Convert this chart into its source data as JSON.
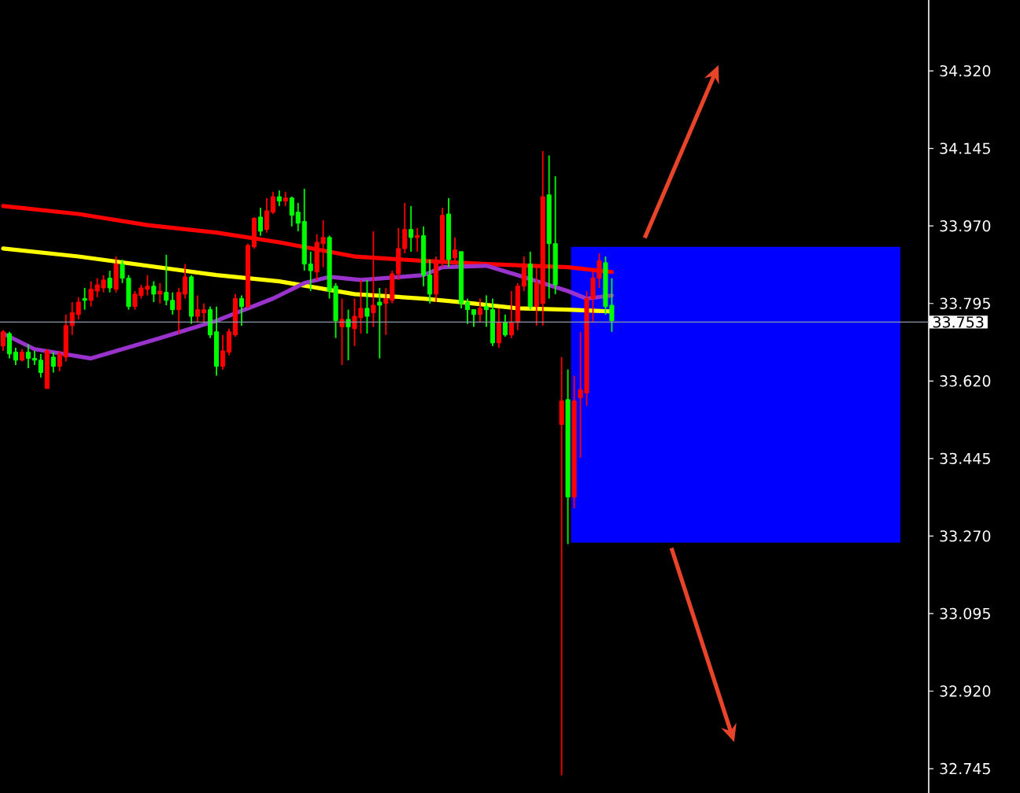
{
  "chart_data": {
    "type": "candlestick",
    "categories": [
      null,
      null,
      null,
      null,
      null,
      null,
      null,
      null,
      null,
      null,
      null,
      null,
      null,
      null,
      null,
      null,
      null,
      null,
      null,
      null,
      null,
      null,
      null,
      null,
      null,
      null,
      null,
      null,
      null,
      null,
      null,
      null,
      null,
      null,
      null,
      null,
      null,
      null,
      null,
      null,
      null,
      null,
      null,
      null,
      null,
      null,
      null,
      null,
      null,
      null,
      null,
      null,
      null,
      null,
      null,
      null,
      null,
      null,
      null,
      null,
      null,
      null,
      null,
      null,
      null,
      null,
      null,
      null,
      null,
      null,
      null,
      null,
      null,
      null,
      null,
      null,
      null,
      null,
      null,
      null,
      null,
      null,
      null,
      null,
      null,
      null,
      null,
      null,
      null,
      null,
      null,
      null,
      null,
      null,
      null,
      null,
      null,
      null,
      null,
      null,
      null,
      null,
      null,
      null,
      null,
      null,
      null,
      null,
      null,
      null,
      null,
      null,
      null,
      null,
      null,
      null,
      null,
      null,
      null,
      null,
      null,
      null,
      null,
      null,
      null,
      null,
      null,
      null,
      null,
      null,
      null,
      null,
      null,
      null,
      null,
      null,
      null,
      null,
      null,
      null,
      null,
      null,
      null,
      null,
      null,
      null,
      null,
      null
    ],
    "ohlc": [
      [
        33.731,
        33.735,
        33.688,
        33.699
      ],
      [
        33.681,
        33.731,
        33.671,
        33.727
      ],
      [
        33.667,
        33.695,
        33.656,
        33.685
      ],
      [
        33.685,
        33.692,
        33.664,
        33.667
      ],
      [
        33.671,
        33.703,
        33.649,
        33.685
      ],
      [
        33.667,
        33.688,
        33.656,
        33.671
      ],
      [
        33.639,
        33.681,
        33.628,
        33.667
      ],
      [
        33.688,
        33.692,
        33.603,
        33.603
      ],
      [
        33.653,
        33.685,
        33.639,
        33.674
      ],
      [
        33.681,
        33.688,
        33.642,
        33.653
      ],
      [
        33.745,
        33.77,
        33.664,
        33.674
      ],
      [
        33.774,
        33.798,
        33.724,
        33.745
      ],
      [
        33.798,
        33.809,
        33.759,
        33.77
      ],
      [
        33.802,
        33.83,
        33.781,
        33.806
      ],
      [
        33.827,
        33.845,
        33.788,
        33.802
      ],
      [
        33.837,
        33.852,
        33.809,
        33.823
      ],
      [
        33.848,
        33.859,
        33.82,
        33.83
      ],
      [
        33.83,
        33.869,
        33.82,
        33.852
      ],
      [
        33.884,
        33.901,
        33.82,
        33.827
      ],
      [
        33.852,
        33.894,
        33.841,
        33.884
      ],
      [
        33.788,
        33.859,
        33.781,
        33.852
      ],
      [
        33.816,
        33.823,
        33.781,
        33.788
      ],
      [
        33.83,
        33.837,
        33.806,
        33.813
      ],
      [
        33.834,
        33.859,
        33.813,
        33.827
      ],
      [
        33.816,
        33.845,
        33.798,
        33.834
      ],
      [
        33.823,
        33.841,
        33.795,
        33.816
      ],
      [
        33.802,
        33.905,
        33.791,
        33.82
      ],
      [
        33.781,
        33.82,
        33.77,
        33.802
      ],
      [
        33.82,
        33.83,
        33.727,
        33.781
      ],
      [
        33.855,
        33.884,
        33.806,
        33.816
      ],
      [
        33.766,
        33.859,
        33.749,
        33.855
      ],
      [
        33.781,
        33.813,
        33.752,
        33.766
      ],
      [
        33.781,
        33.795,
        33.752,
        33.774
      ],
      [
        33.724,
        33.788,
        33.717,
        33.781
      ],
      [
        33.653,
        33.788,
        33.632,
        33.731
      ],
      [
        33.688,
        33.724,
        33.646,
        33.653
      ],
      [
        33.731,
        33.738,
        33.678,
        33.685
      ],
      [
        33.806,
        33.816,
        33.72,
        33.724
      ],
      [
        33.788,
        33.813,
        33.745,
        33.806
      ],
      [
        33.926,
        33.93,
        33.784,
        33.788
      ],
      [
        33.987,
        33.99,
        33.919,
        33.923
      ],
      [
        33.958,
        34.011,
        33.948,
        33.99
      ],
      [
        34.004,
        34.033,
        33.955,
        33.962
      ],
      [
        34.036,
        34.047,
        33.997,
        34.001
      ],
      [
        34.026,
        34.05,
        34.015,
        34.036
      ],
      [
        34.033,
        34.047,
        34.015,
        34.026
      ],
      [
        33.994,
        34.036,
        33.969,
        34.033
      ],
      [
        33.976,
        34.022,
        33.958,
        34.001
      ],
      [
        33.884,
        34.054,
        33.869,
        33.98
      ],
      [
        33.869,
        33.912,
        33.823,
        33.884
      ],
      [
        33.933,
        33.951,
        33.848,
        33.866
      ],
      [
        33.944,
        33.983,
        33.877,
        33.93
      ],
      [
        33.823,
        33.948,
        33.806,
        33.944
      ],
      [
        33.756,
        33.841,
        33.717,
        33.834
      ],
      [
        33.759,
        33.806,
        33.656,
        33.742
      ],
      [
        33.742,
        33.781,
        33.667,
        33.759
      ],
      [
        33.766,
        33.806,
        33.699,
        33.738
      ],
      [
        33.784,
        33.848,
        33.727,
        33.763
      ],
      [
        33.766,
        33.848,
        33.727,
        33.784
      ],
      [
        33.791,
        33.958,
        33.742,
        33.774
      ],
      [
        33.791,
        33.83,
        33.671,
        33.798
      ],
      [
        33.806,
        33.83,
        33.724,
        33.795
      ],
      [
        33.862,
        33.869,
        33.795,
        33.802
      ],
      [
        33.919,
        33.965,
        33.848,
        33.862
      ],
      [
        33.962,
        34.022,
        33.908,
        33.919
      ],
      [
        33.944,
        34.015,
        33.912,
        33.962
      ],
      [
        33.948,
        33.965,
        33.912,
        33.944
      ],
      [
        33.859,
        33.969,
        33.834,
        33.948
      ],
      [
        33.816,
        33.894,
        33.795,
        33.859
      ],
      [
        33.887,
        33.901,
        33.798,
        33.816
      ],
      [
        33.994,
        34.011,
        33.877,
        33.891
      ],
      [
        33.894,
        34.033,
        33.877,
        33.997
      ],
      [
        33.916,
        33.944,
        33.884,
        33.898
      ],
      [
        33.795,
        33.912,
        33.784,
        33.912
      ],
      [
        33.781,
        33.806,
        33.749,
        33.798
      ],
      [
        33.77,
        33.781,
        33.742,
        33.781
      ],
      [
        33.784,
        33.806,
        33.752,
        33.77
      ],
      [
        33.781,
        33.813,
        33.742,
        33.788
      ],
      [
        33.706,
        33.806,
        33.699,
        33.781
      ],
      [
        33.752,
        33.784,
        33.695,
        33.706
      ],
      [
        33.724,
        33.77,
        33.72,
        33.752
      ],
      [
        33.752,
        33.823,
        33.717,
        33.724
      ],
      [
        33.834,
        33.841,
        33.735,
        33.752
      ],
      [
        33.884,
        33.901,
        33.823,
        33.834
      ],
      [
        33.788,
        33.912,
        33.781,
        33.884
      ],
      [
        33.841,
        33.877,
        33.745,
        33.788
      ],
      [
        34.036,
        34.139,
        33.745,
        33.795
      ],
      [
        33.93,
        34.129,
        33.806,
        34.04
      ],
      [
        33.837,
        34.082,
        33.816,
        33.93
      ],
      [
        33.575,
        33.674,
        32.73,
        33.522
      ],
      [
        33.358,
        33.646,
        33.252,
        33.578
      ],
      [
        33.575,
        33.632,
        33.333,
        33.358
      ],
      [
        33.6,
        33.731,
        33.447,
        33.582
      ],
      [
        33.806,
        33.823,
        33.564,
        33.593
      ],
      [
        33.852,
        33.869,
        33.752,
        33.806
      ],
      [
        33.891,
        33.908,
        33.83,
        33.852
      ],
      [
        33.788,
        33.901,
        33.77,
        33.887
      ],
      [
        33.756,
        33.852,
        33.731,
        33.791
      ],
      null,
      null,
      null,
      null,
      null,
      null,
      null,
      null,
      null,
      null,
      null,
      null,
      null,
      null,
      null,
      null,
      null,
      null,
      null,
      null,
      null,
      null,
      null,
      null,
      null,
      null,
      null,
      null,
      null,
      null,
      null,
      null,
      null,
      null,
      null,
      null,
      null,
      null,
      null,
      null,
      null,
      null,
      null,
      null,
      null,
      null,
      null,
      null,
      null,
      null
    ],
    "colors": [
      "#ff0000",
      "#00ff00",
      "#00ff00",
      "#ff0000",
      "#00ff00",
      "#00ff00",
      "#00ff00",
      "#ff0000",
      "#00ff00",
      "#ff0000",
      "#ff0000",
      "#ff0000",
      "#ff0000",
      "#00ff00",
      "#ff0000",
      "#ff0000",
      "#ff0000",
      "#00ff00",
      "#ff0000",
      "#00ff00",
      "#00ff00",
      "#ff0000",
      "#ff0000",
      "#ff0000",
      "#00ff00",
      "#ff0000",
      "#00ff00",
      "#00ff00",
      "#ff0000",
      "#ff0000",
      "#00ff00",
      "#ff0000",
      "#ff0000",
      "#00ff00",
      "#00ff00",
      "#ff0000",
      "#ff0000",
      "#ff0000",
      "#00ff00",
      "#ff0000",
      "#ff0000",
      "#00ff00",
      "#ff0000",
      "#ff0000",
      "#00ff00",
      "#ff0000",
      "#00ff00",
      "#00ff00",
      "#00ff00",
      "#00ff00",
      "#ff0000",
      "#ff0000",
      "#00ff00",
      "#00ff00",
      "#ff0000",
      "#00ff00",
      "#ff0000",
      "#ff0000",
      "#00ff00",
      "#ff0000",
      "#00ff00",
      "#ff0000",
      "#ff0000",
      "#ff0000",
      "#ff0000",
      "#00ff00",
      "#ff0000",
      "#00ff00",
      "#00ff00",
      "#ff0000",
      "#ff0000",
      "#00ff00",
      "#ff0000",
      "#00ff00",
      "#00ff00",
      "#00ff00",
      "#ff0000",
      "#00ff00",
      "#00ff00",
      "#ff0000",
      "#00ff00",
      "#ff0000",
      "#ff0000",
      "#ff0000",
      "#00ff00",
      "#ff0000",
      "#ff0000",
      "#00ff00",
      "#00ff00",
      "#ff0000",
      "#00ff00",
      "#ff0000",
      "#ff0000",
      "#ff0000",
      "#ff0000",
      "#ff0000",
      "#00ff00",
      "#00ff00",
      null,
      null,
      null,
      null,
      null,
      null,
      null,
      null,
      null,
      null,
      null,
      null,
      null,
      null,
      null,
      null,
      null,
      null,
      null,
      null,
      null,
      null,
      null,
      null,
      null,
      null,
      null,
      null,
      null,
      null,
      null,
      null,
      null,
      null,
      null,
      null,
      null,
      null,
      null,
      null,
      null,
      null,
      null,
      null,
      null,
      null,
      null,
      null,
      null,
      null
    ],
    "series": [
      {
        "type": "line",
        "color": "#ff0000",
        "values": [
          34.015,
          null,
          null,
          null,
          null,
          null,
          null,
          null,
          null,
          null,
          null,
          null,
          33.997,
          null,
          null,
          null,
          null,
          null,
          null,
          null,
          null,
          null,
          null,
          33.972,
          null,
          null,
          null,
          null,
          null,
          null,
          null,
          null,
          null,
          null,
          33.955,
          null,
          null,
          null,
          null,
          null,
          null,
          null,
          null,
          null,
          33.933,
          null,
          null,
          null,
          null,
          null,
          null,
          null,
          null,
          null,
          null,
          null,
          33.901,
          null,
          null,
          null,
          null,
          null,
          null,
          null,
          null,
          null,
          null,
          33.891,
          null,
          null,
          null,
          null,
          null,
          null,
          null,
          null,
          null,
          33.884,
          null,
          null,
          null,
          null,
          null,
          null,
          null,
          null,
          null,
          null,
          null,
          null,
          33.877,
          null,
          null,
          null,
          null,
          null,
          null,
          33.866,
          null,
          null,
          null,
          null,
          null,
          null,
          null,
          null,
          null,
          null,
          null,
          null,
          null,
          null,
          null,
          null,
          null,
          null,
          null,
          null,
          null,
          null,
          null,
          null,
          null,
          null,
          null,
          null,
          null,
          null,
          null,
          null,
          null,
          null,
          null,
          null,
          null,
          null,
          null,
          null,
          null,
          null,
          null,
          null,
          null,
          null,
          null,
          null,
          null,
          null
        ]
      },
      {
        "type": "line",
        "color": "#ffff00",
        "values": [
          33.919,
          null,
          null,
          null,
          null,
          null,
          null,
          null,
          null,
          null,
          null,
          null,
          33.901,
          null,
          null,
          null,
          null,
          null,
          null,
          null,
          null,
          null,
          null,
          33.88,
          null,
          null,
          null,
          null,
          null,
          null,
          null,
          null,
          null,
          null,
          33.859,
          null,
          null,
          null,
          null,
          null,
          null,
          null,
          null,
          null,
          33.845,
          null,
          null,
          null,
          null,
          null,
          null,
          null,
          null,
          null,
          null,
          null,
          33.816,
          null,
          null,
          null,
          null,
          null,
          null,
          null,
          null,
          null,
          null,
          33.806,
          null,
          null,
          null,
          null,
          null,
          33.798,
          null,
          null,
          null,
          null,
          null,
          null,
          null,
          null,
          33.784,
          null,
          null,
          null,
          null,
          null,
          null,
          null,
          33.781,
          null,
          null,
          null,
          null,
          null,
          null,
          33.777,
          null,
          null,
          null,
          null,
          null,
          null,
          null,
          null,
          null,
          null,
          null,
          null,
          null,
          null,
          null,
          null,
          null,
          null,
          null,
          null,
          null,
          null,
          null,
          null,
          null,
          null,
          null,
          null,
          null,
          null,
          null,
          null,
          null,
          null,
          null,
          null,
          null,
          null,
          null,
          null,
          null,
          null,
          null,
          null,
          null,
          null,
          null,
          null,
          null,
          null
        ]
      },
      {
        "type": "line",
        "color": "#9933cc",
        "values": [
          33.727,
          null,
          null,
          null,
          null,
          33.692,
          null,
          null,
          null,
          null,
          null,
          null,
          null,
          null,
          33.671,
          null,
          null,
          null,
          null,
          null,
          null,
          null,
          null,
          null,
          null,
          33.717,
          null,
          null,
          null,
          null,
          null,
          null,
          null,
          null,
          33.756,
          null,
          null,
          null,
          null,
          null,
          null,
          null,
          null,
          33.806,
          null,
          null,
          null,
          null,
          33.841,
          null,
          null,
          null,
          33.855,
          null,
          null,
          null,
          null,
          33.848,
          null,
          null,
          null,
          null,
          null,
          null,
          null,
          null,
          null,
          33.859,
          null,
          null,
          33.877,
          null,
          null,
          null,
          null,
          null,
          null,
          33.88,
          null,
          null,
          null,
          null,
          33.859,
          null,
          null,
          null,
          null,
          null,
          null,
          null,
          33.823,
          null,
          null,
          33.806,
          null,
          null,
          null,
          33.813,
          null,
          null,
          null,
          null,
          null,
          null,
          null,
          null,
          null,
          null,
          null,
          null,
          null,
          null,
          null,
          null,
          null,
          null,
          null,
          null,
          null,
          null,
          null,
          null,
          null,
          null,
          null,
          null,
          null,
          null,
          null,
          null,
          null,
          null,
          null,
          null,
          null,
          null,
          null,
          null,
          null,
          null,
          null,
          null,
          null,
          null,
          null,
          null,
          null,
          null
        ]
      }
    ],
    "ylim": [
      32.69,
      34.48
    ],
    "yticks": [
      {
        "value": 32.745,
        "label": "32.745"
      },
      {
        "value": 32.92,
        "label": "32.920"
      },
      {
        "value": 33.095,
        "label": "33.095"
      },
      {
        "value": 33.27,
        "label": "33.270"
      },
      {
        "value": 33.445,
        "label": "33.445"
      },
      {
        "value": 33.62,
        "label": "33.620"
      },
      {
        "value": 33.795,
        "label": "33.795"
      },
      {
        "value": 33.97,
        "label": "33.970"
      },
      {
        "value": 34.145,
        "label": "34.145"
      },
      {
        "value": 34.32,
        "label": "34.320"
      }
    ],
    "ref_lines": [
      {
        "axis": "y",
        "value": 33.753,
        "label": "33.753",
        "color": "#8a9aac"
      }
    ],
    "bands": [
      {
        "axis": "y",
        "from": 33.255,
        "to": 33.923,
        "color": "#0000ff"
      }
    ],
    "tick_labels": "y",
    "grid": false
  }
}
